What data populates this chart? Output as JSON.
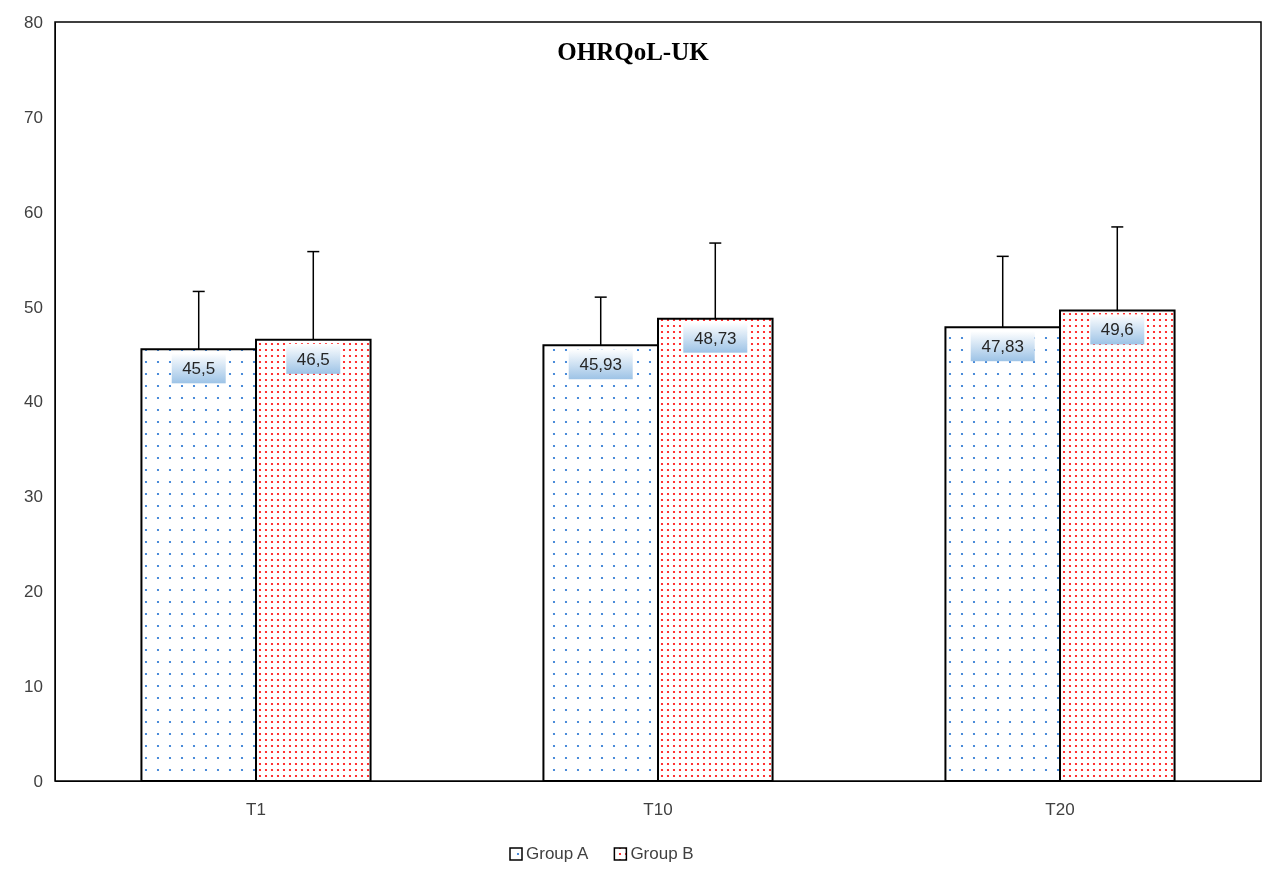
{
  "chart_data": {
    "type": "bar",
    "title": "OHRQoL-UK",
    "categories": [
      "T1",
      "T10",
      "T20"
    ],
    "series": [
      {
        "name": "Group A",
        "color": "#1f6fd0",
        "values": [
          45.5,
          45.93,
          47.83
        ],
        "value_labels": [
          "45,5",
          "45,93",
          "47,83"
        ],
        "errors": [
          [
            45.5,
            51.6
          ],
          [
            45.93,
            51.0
          ],
          [
            47.83,
            55.3
          ]
        ]
      },
      {
        "name": "Group B",
        "color": "#ff0000",
        "values": [
          46.5,
          48.73,
          49.6
        ],
        "value_labels": [
          "46,5",
          "48,73",
          "49,6"
        ],
        "errors": [
          [
            46.5,
            55.8
          ],
          [
            48.73,
            56.7
          ],
          [
            49.6,
            58.4
          ]
        ]
      }
    ],
    "ylim": [
      0,
      80
    ],
    "yticks": [
      0,
      10,
      20,
      30,
      40,
      50,
      60,
      70,
      80
    ],
    "grid": false,
    "legend": "bottom"
  }
}
